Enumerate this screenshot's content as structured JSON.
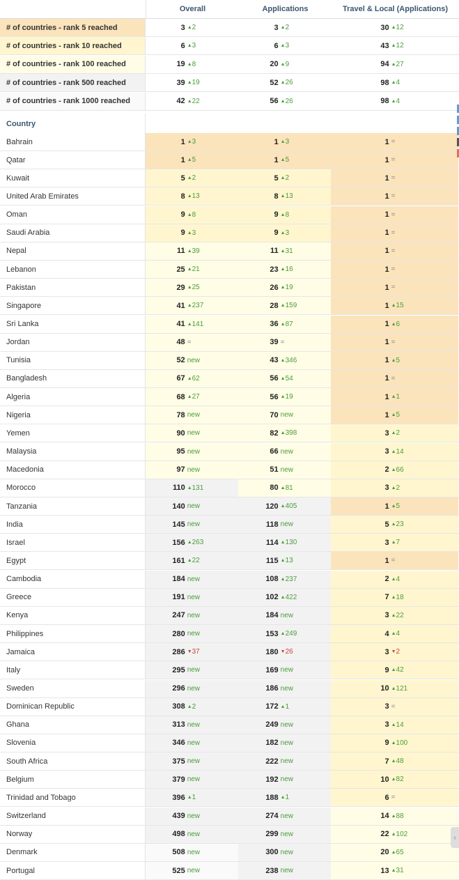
{
  "headers": {
    "overall": "Overall",
    "applications": "Applications",
    "travel": "Travel & Local (Applications)"
  },
  "summary": [
    {
      "label": "# of countries - rank 5 reached",
      "bg": "o",
      "overall": {
        "v": "3",
        "d": "2",
        "t": "up"
      },
      "apps": {
        "v": "3",
        "d": "2",
        "t": "up"
      },
      "travel": {
        "v": "30",
        "d": "12",
        "t": "up"
      }
    },
    {
      "label": "# of countries - rank 10 reached",
      "bg": "y",
      "overall": {
        "v": "6",
        "d": "3",
        "t": "up"
      },
      "apps": {
        "v": "6",
        "d": "3",
        "t": "up"
      },
      "travel": {
        "v": "43",
        "d": "12",
        "t": "up"
      }
    },
    {
      "label": "# of countries - rank 100 reached",
      "bg": "ly",
      "overall": {
        "v": "19",
        "d": "8",
        "t": "up"
      },
      "apps": {
        "v": "20",
        "d": "9",
        "t": "up"
      },
      "travel": {
        "v": "94",
        "d": "27",
        "t": "up"
      }
    },
    {
      "label": "# of countries - rank 500 reached",
      "bg": "g",
      "overall": {
        "v": "39",
        "d": "19",
        "t": "up"
      },
      "apps": {
        "v": "52",
        "d": "26",
        "t": "up"
      },
      "travel": {
        "v": "98",
        "d": "4",
        "t": "up"
      }
    },
    {
      "label": "# of countries - rank 1000 reached",
      "bg": "w",
      "overall": {
        "v": "42",
        "d": "22",
        "t": "up"
      },
      "apps": {
        "v": "56",
        "d": "26",
        "t": "up"
      },
      "travel": {
        "v": "98",
        "d": "4",
        "t": "up"
      }
    }
  ],
  "country_header": "Country",
  "rows": [
    {
      "country": "Bahrain",
      "o": [
        "1",
        "3",
        "up",
        "o"
      ],
      "a": [
        "1",
        "3",
        "up",
        "o"
      ],
      "t": [
        "1",
        "=",
        "eq",
        "o"
      ]
    },
    {
      "country": "Qatar",
      "o": [
        "1",
        "5",
        "up",
        "o"
      ],
      "a": [
        "1",
        "5",
        "up",
        "o"
      ],
      "t": [
        "1",
        "=",
        "eq",
        "o"
      ]
    },
    {
      "country": "Kuwait",
      "o": [
        "5",
        "2",
        "up",
        "y"
      ],
      "a": [
        "5",
        "2",
        "up",
        "y"
      ],
      "t": [
        "1",
        "=",
        "eq",
        "o"
      ]
    },
    {
      "country": "United Arab Emirates",
      "o": [
        "8",
        "13",
        "up",
        "y"
      ],
      "a": [
        "8",
        "13",
        "up",
        "y"
      ],
      "t": [
        "1",
        "=",
        "eq",
        "o"
      ]
    },
    {
      "country": "Oman",
      "o": [
        "9",
        "8",
        "up",
        "y"
      ],
      "a": [
        "9",
        "8",
        "up",
        "y"
      ],
      "t": [
        "1",
        "=",
        "eq",
        "o"
      ]
    },
    {
      "country": "Saudi Arabia",
      "o": [
        "9",
        "3",
        "up",
        "y"
      ],
      "a": [
        "9",
        "3",
        "up",
        "y"
      ],
      "t": [
        "1",
        "=",
        "eq",
        "o"
      ]
    },
    {
      "country": "Nepal",
      "o": [
        "11",
        "39",
        "up",
        "ly"
      ],
      "a": [
        "11",
        "31",
        "up",
        "ly"
      ],
      "t": [
        "1",
        "=",
        "eq",
        "o"
      ]
    },
    {
      "country": "Lebanon",
      "o": [
        "25",
        "21",
        "up",
        "ly"
      ],
      "a": [
        "23",
        "16",
        "up",
        "ly"
      ],
      "t": [
        "1",
        "=",
        "eq",
        "o"
      ]
    },
    {
      "country": "Pakistan",
      "o": [
        "29",
        "25",
        "up",
        "ly"
      ],
      "a": [
        "26",
        "19",
        "up",
        "ly"
      ],
      "t": [
        "1",
        "=",
        "eq",
        "o"
      ]
    },
    {
      "country": "Singapore",
      "o": [
        "41",
        "237",
        "up",
        "ly"
      ],
      "a": [
        "28",
        "159",
        "up",
        "ly"
      ],
      "t": [
        "1",
        "15",
        "up",
        "o"
      ]
    },
    {
      "country": "Sri Lanka",
      "o": [
        "41",
        "141",
        "up",
        "ly"
      ],
      "a": [
        "36",
        "87",
        "up",
        "ly"
      ],
      "t": [
        "1",
        "6",
        "up",
        "o"
      ]
    },
    {
      "country": "Jordan",
      "o": [
        "48",
        "=",
        "eq",
        "ly"
      ],
      "a": [
        "39",
        "=",
        "eq",
        "ly"
      ],
      "t": [
        "1",
        "=",
        "eq",
        "o"
      ]
    },
    {
      "country": "Tunisia",
      "o": [
        "52",
        "new",
        "nw",
        "ly"
      ],
      "a": [
        "43",
        "346",
        "up",
        "ly"
      ],
      "t": [
        "1",
        "5",
        "up",
        "o"
      ]
    },
    {
      "country": "Bangladesh",
      "o": [
        "67",
        "62",
        "up",
        "ly"
      ],
      "a": [
        "56",
        "54",
        "up",
        "ly"
      ],
      "t": [
        "1",
        "=",
        "eq",
        "o"
      ]
    },
    {
      "country": "Algeria",
      "o": [
        "68",
        "27",
        "up",
        "ly"
      ],
      "a": [
        "56",
        "19",
        "up",
        "ly"
      ],
      "t": [
        "1",
        "1",
        "up",
        "o"
      ]
    },
    {
      "country": "Nigeria",
      "o": [
        "78",
        "new",
        "nw",
        "ly"
      ],
      "a": [
        "70",
        "new",
        "nw",
        "ly"
      ],
      "t": [
        "1",
        "5",
        "up",
        "o"
      ]
    },
    {
      "country": "Yemen",
      "o": [
        "90",
        "new",
        "nw",
        "ly"
      ],
      "a": [
        "82",
        "398",
        "up",
        "ly"
      ],
      "t": [
        "3",
        "2",
        "up",
        "y"
      ]
    },
    {
      "country": "Malaysia",
      "o": [
        "95",
        "new",
        "nw",
        "ly"
      ],
      "a": [
        "66",
        "new",
        "nw",
        "ly"
      ],
      "t": [
        "3",
        "14",
        "up",
        "y"
      ]
    },
    {
      "country": "Macedonia",
      "o": [
        "97",
        "new",
        "nw",
        "ly"
      ],
      "a": [
        "51",
        "new",
        "nw",
        "ly"
      ],
      "t": [
        "2",
        "66",
        "up",
        "y"
      ]
    },
    {
      "country": "Morocco",
      "o": [
        "110",
        "131",
        "up",
        "g"
      ],
      "a": [
        "80",
        "81",
        "up",
        "ly"
      ],
      "t": [
        "3",
        "2",
        "up",
        "y"
      ]
    },
    {
      "country": "Tanzania",
      "o": [
        "140",
        "new",
        "nw",
        "g"
      ],
      "a": [
        "120",
        "405",
        "up",
        "g"
      ],
      "t": [
        "1",
        "5",
        "up",
        "o"
      ]
    },
    {
      "country": "India",
      "o": [
        "145",
        "new",
        "nw",
        "g"
      ],
      "a": [
        "118",
        "new",
        "nw",
        "g"
      ],
      "t": [
        "5",
        "23",
        "up",
        "y"
      ]
    },
    {
      "country": "Israel",
      "o": [
        "156",
        "263",
        "up",
        "g"
      ],
      "a": [
        "114",
        "130",
        "up",
        "g"
      ],
      "t": [
        "3",
        "7",
        "up",
        "y"
      ]
    },
    {
      "country": "Egypt",
      "o": [
        "161",
        "22",
        "up",
        "g"
      ],
      "a": [
        "115",
        "13",
        "up",
        "g"
      ],
      "t": [
        "1",
        "=",
        "eq",
        "o"
      ]
    },
    {
      "country": "Cambodia",
      "o": [
        "184",
        "new",
        "nw",
        "g"
      ],
      "a": [
        "108",
        "237",
        "up",
        "g"
      ],
      "t": [
        "2",
        "4",
        "up",
        "y"
      ]
    },
    {
      "country": "Greece",
      "o": [
        "191",
        "new",
        "nw",
        "g"
      ],
      "a": [
        "102",
        "422",
        "up",
        "g"
      ],
      "t": [
        "7",
        "18",
        "up",
        "y"
      ]
    },
    {
      "country": "Kenya",
      "o": [
        "247",
        "new",
        "nw",
        "g"
      ],
      "a": [
        "184",
        "new",
        "nw",
        "g"
      ],
      "t": [
        "3",
        "22",
        "up",
        "y"
      ]
    },
    {
      "country": "Philippines",
      "o": [
        "280",
        "new",
        "nw",
        "g"
      ],
      "a": [
        "153",
        "249",
        "up",
        "g"
      ],
      "t": [
        "4",
        "4",
        "up",
        "y"
      ]
    },
    {
      "country": "Jamaica",
      "o": [
        "286",
        "37",
        "dn",
        "g"
      ],
      "a": [
        "180",
        "26",
        "dn",
        "g"
      ],
      "t": [
        "3",
        "2",
        "dn",
        "y"
      ]
    },
    {
      "country": "Italy",
      "o": [
        "295",
        "new",
        "nw",
        "g"
      ],
      "a": [
        "169",
        "new",
        "nw",
        "g"
      ],
      "t": [
        "9",
        "42",
        "up",
        "y"
      ]
    },
    {
      "country": "Sweden",
      "o": [
        "296",
        "new",
        "nw",
        "g"
      ],
      "a": [
        "186",
        "new",
        "nw",
        "g"
      ],
      "t": [
        "10",
        "121",
        "up",
        "y"
      ]
    },
    {
      "country": "Dominican Republic",
      "o": [
        "308",
        "2",
        "up",
        "g"
      ],
      "a": [
        "172",
        "1",
        "up",
        "g"
      ],
      "t": [
        "3",
        "=",
        "eq",
        "y"
      ]
    },
    {
      "country": "Ghana",
      "o": [
        "313",
        "new",
        "nw",
        "g"
      ],
      "a": [
        "249",
        "new",
        "nw",
        "g"
      ],
      "t": [
        "3",
        "14",
        "up",
        "y"
      ]
    },
    {
      "country": "Slovenia",
      "o": [
        "346",
        "new",
        "nw",
        "g"
      ],
      "a": [
        "182",
        "new",
        "nw",
        "g"
      ],
      "t": [
        "9",
        "100",
        "up",
        "y"
      ]
    },
    {
      "country": "South Africa",
      "o": [
        "375",
        "new",
        "nw",
        "g"
      ],
      "a": [
        "222",
        "new",
        "nw",
        "g"
      ],
      "t": [
        "7",
        "48",
        "up",
        "y"
      ]
    },
    {
      "country": "Belgium",
      "o": [
        "379",
        "new",
        "nw",
        "g"
      ],
      "a": [
        "192",
        "new",
        "nw",
        "g"
      ],
      "t": [
        "10",
        "82",
        "up",
        "y"
      ]
    },
    {
      "country": "Trinidad and Tobago",
      "o": [
        "396",
        "1",
        "up",
        "g"
      ],
      "a": [
        "188",
        "1",
        "up",
        "g"
      ],
      "t": [
        "6",
        "=",
        "eq",
        "y"
      ]
    },
    {
      "country": "Switzerland",
      "o": [
        "439",
        "new",
        "nw",
        "g"
      ],
      "a": [
        "274",
        "new",
        "nw",
        "g"
      ],
      "t": [
        "14",
        "88",
        "up",
        "ly"
      ]
    },
    {
      "country": "Norway",
      "o": [
        "498",
        "new",
        "nw",
        "g"
      ],
      "a": [
        "299",
        "new",
        "nw",
        "g"
      ],
      "t": [
        "22",
        "102",
        "up",
        "ly"
      ]
    },
    {
      "country": "Denmark",
      "o": [
        "508",
        "new",
        "nw",
        "w"
      ],
      "a": [
        "300",
        "new",
        "nw",
        "g"
      ],
      "t": [
        "20",
        "65",
        "up",
        "ly"
      ]
    },
    {
      "country": "Portugal",
      "o": [
        "525",
        "new",
        "nw",
        "w"
      ],
      "a": [
        "238",
        "new",
        "nw",
        "g"
      ],
      "t": [
        "13",
        "31",
        "up",
        "ly"
      ]
    }
  ]
}
